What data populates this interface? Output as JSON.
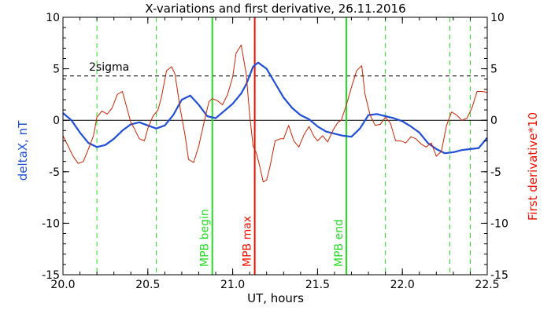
{
  "chart_data": {
    "type": "line",
    "title": "X-variations and first derivative, 26.11.2016",
    "xlabel": "UT, hours",
    "ylabel_left": "deltaX, nT",
    "ylabel_right": "First derivative*10",
    "xlim": [
      20.0,
      22.5
    ],
    "ylim": [
      -15,
      10
    ],
    "x_ticks": [
      "20.0",
      "20.5",
      "21.0",
      "21.5",
      "22.0",
      "22.5"
    ],
    "y_ticks_left": [
      "10",
      "5",
      "0",
      "-5",
      "-10",
      "-15"
    ],
    "y_ticks_right": [
      "10",
      "5",
      "0",
      "-5",
      "-10",
      "-15"
    ],
    "colors": {
      "deltaX": "#1f4fd6",
      "derivative": "#cc2200",
      "green": "#22dd22",
      "red_marker": "#ee1100"
    },
    "threshold": {
      "label": "2sigma",
      "y": 4.3
    },
    "vertical_markers": [
      {
        "x": 20.88,
        "label": "MPB begin",
        "color": "#22dd22"
      },
      {
        "x": 21.13,
        "label": "MPB max",
        "color": "#ee1100"
      },
      {
        "x": 21.67,
        "label": "MPB end",
        "color": "#22dd22"
      }
    ],
    "dashed_lines_x": [
      20.2,
      20.55,
      21.9,
      22.28,
      22.4
    ],
    "series": [
      {
        "name": "deltaX",
        "x": [
          20.0,
          20.05,
          20.1,
          20.15,
          20.2,
          20.25,
          20.3,
          20.35,
          20.4,
          20.45,
          20.5,
          20.55,
          20.6,
          20.65,
          20.7,
          20.75,
          20.8,
          20.85,
          20.9,
          20.95,
          21.0,
          21.05,
          21.08,
          21.12,
          21.15,
          21.2,
          21.25,
          21.3,
          21.35,
          21.4,
          21.45,
          21.5,
          21.55,
          21.6,
          21.65,
          21.7,
          21.75,
          21.8,
          21.85,
          21.9,
          21.95,
          22.0,
          22.05,
          22.1,
          22.15,
          22.2,
          22.25,
          22.3,
          22.35,
          22.4,
          22.45,
          22.5
        ],
        "y": [
          0.7,
          0.0,
          -1.2,
          -2.2,
          -2.6,
          -2.4,
          -1.8,
          -1.0,
          -0.4,
          -0.2,
          -0.5,
          -0.8,
          -0.5,
          0.5,
          2.0,
          2.4,
          1.5,
          0.4,
          0.2,
          0.9,
          1.6,
          2.6,
          3.5,
          5.2,
          5.6,
          5.0,
          3.6,
          2.2,
          1.2,
          0.5,
          0.1,
          -0.6,
          -1.1,
          -1.3,
          -1.5,
          -1.6,
          -0.8,
          0.5,
          0.6,
          0.4,
          0.2,
          -0.1,
          -0.6,
          -1.2,
          -2.2,
          -2.8,
          -3.2,
          -3.1,
          -2.9,
          -2.8,
          -2.7,
          -1.7
        ]
      },
      {
        "name": "derivative",
        "x": [
          20.0,
          20.03,
          20.06,
          20.09,
          20.12,
          20.15,
          20.18,
          20.2,
          20.23,
          20.26,
          20.29,
          20.32,
          20.35,
          20.38,
          20.4,
          20.42,
          20.45,
          20.48,
          20.5,
          20.53,
          20.56,
          20.58,
          20.61,
          20.64,
          20.66,
          20.69,
          20.72,
          20.74,
          20.77,
          20.8,
          20.83,
          20.86,
          20.88,
          20.91,
          20.94,
          20.97,
          21.0,
          21.02,
          21.05,
          21.08,
          21.1,
          21.12,
          21.14,
          21.16,
          21.18,
          21.2,
          21.22,
          21.25,
          21.28,
          21.3,
          21.33,
          21.36,
          21.39,
          21.42,
          21.45,
          21.48,
          21.5,
          21.53,
          21.56,
          21.59,
          21.62,
          21.64,
          21.67,
          21.7,
          21.73,
          21.76,
          21.78,
          21.81,
          21.84,
          21.87,
          21.9,
          21.93,
          21.96,
          21.99,
          22.02,
          22.05,
          22.08,
          22.11,
          22.14,
          22.17,
          22.2,
          22.23,
          22.26,
          22.29,
          22.32,
          22.35,
          22.38,
          22.41,
          22.44,
          22.47,
          22.5
        ],
        "y": [
          -1.5,
          -2.5,
          -3.5,
          -4.2,
          -4.0,
          -2.8,
          -1.5,
          0.3,
          0.9,
          0.6,
          1.2,
          2.5,
          2.8,
          1.0,
          -0.2,
          -0.8,
          -1.8,
          -2.0,
          -0.8,
          0.4,
          1.0,
          2.2,
          4.8,
          5.2,
          4.5,
          1.2,
          -1.5,
          -3.8,
          -4.1,
          -2.5,
          -0.3,
          1.8,
          2.1,
          1.9,
          1.5,
          2.5,
          4.2,
          6.5,
          7.3,
          4.5,
          0.5,
          -2.5,
          -3.2,
          -4.5,
          -6.0,
          -5.8,
          -4.5,
          -2.0,
          -1.8,
          -1.8,
          -0.5,
          -2.0,
          -2.6,
          -1.4,
          -0.6,
          -1.6,
          -2.0,
          -1.5,
          -2.1,
          -1.0,
          -0.2,
          0.0,
          1.5,
          3.2,
          4.8,
          5.3,
          2.5,
          0.5,
          -0.5,
          -0.4,
          0.3,
          -0.3,
          -2.0,
          -2.0,
          -2.2,
          -1.6,
          -1.8,
          -2.3,
          -2.6,
          -2.2,
          -3.5,
          -3.0,
          -0.5,
          0.8,
          0.5,
          0.0,
          0.2,
          1.2,
          2.8,
          2.8,
          2.7
        ]
      }
    ]
  }
}
